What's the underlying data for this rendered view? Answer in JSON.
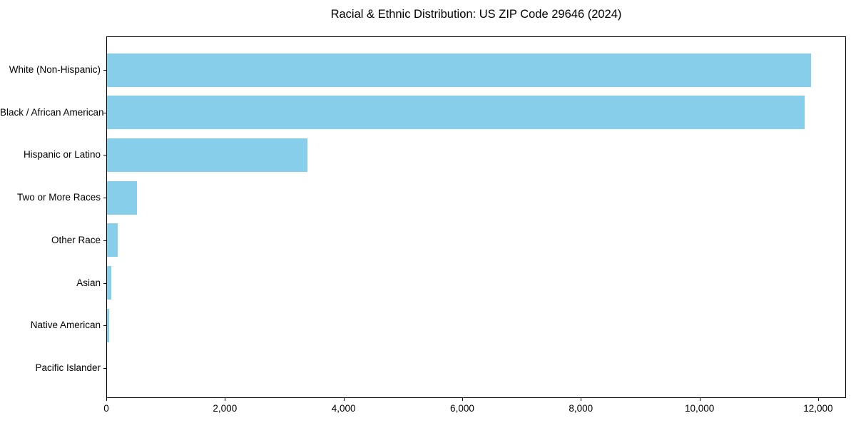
{
  "chart_data": {
    "type": "bar",
    "orientation": "horizontal",
    "title": "Racial & Ethnic Distribution: US ZIP Code 29646 (2024)",
    "categories": [
      "White (Non-Hispanic)",
      "Black / African American",
      "Hispanic or Latino",
      "Two or More Races",
      "Other Race",
      "Asian",
      "Native American",
      "Pacific Islander"
    ],
    "values": [
      11870,
      11760,
      3380,
      505,
      180,
      75,
      35,
      0
    ],
    "xlabel": "",
    "ylabel": "",
    "xlim": [
      0,
      12470
    ],
    "xticks": {
      "values": [
        0,
        2000,
        4000,
        6000,
        8000,
        10000,
        12000
      ],
      "labels": [
        "0",
        "2,000",
        "4,000",
        "6,000",
        "8,000",
        "10,000",
        "12,000"
      ]
    },
    "bar_color": "#87CEEB",
    "grid": false,
    "legend_position": "none"
  }
}
